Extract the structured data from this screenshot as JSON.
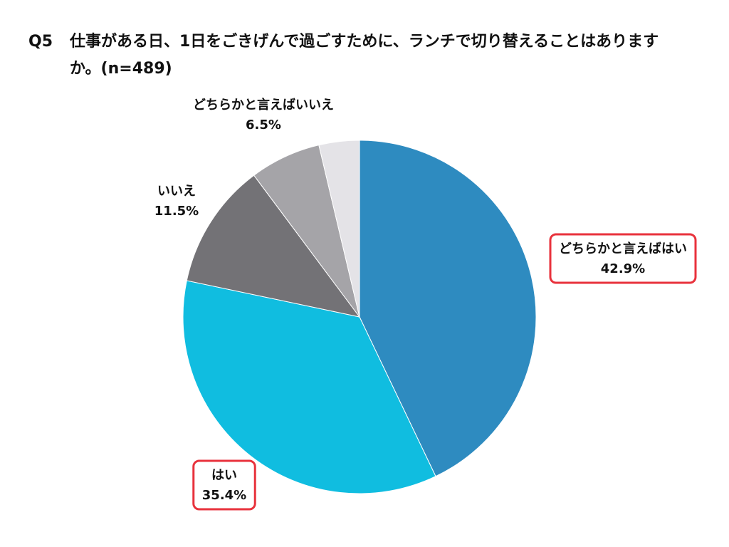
{
  "chart_data": {
    "type": "pie",
    "question_number": "Q5",
    "title": "仕事がある日、1日をごきげんで過ごすために、ランチで切り替えることはありますか。(n=489)",
    "categories": [
      "どちらかと言えばはい",
      "はい",
      "いいえ",
      "どちらかと言えばいいえ",
      null
    ],
    "values": [
      42.9,
      35.4,
      11.5,
      6.5,
      3.7
    ],
    "value_labels": [
      "42.9%",
      "35.4%",
      "11.5%",
      "6.5%",
      null
    ],
    "colors": [
      "#2e8bc0",
      "#10bde0",
      "#737276",
      "#a5a4a8",
      "#e4e3e7"
    ]
  }
}
